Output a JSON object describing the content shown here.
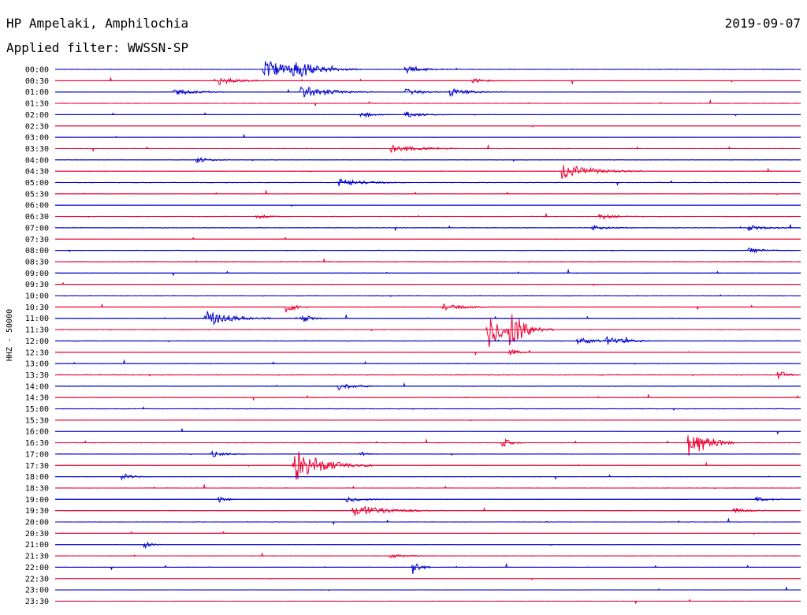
{
  "header": {
    "station": "HP Ampelaki, Amphilochia",
    "filter": "Applied filter: WWSSN-SP",
    "date": "2019-09-07"
  },
  "chart_data": {
    "type": "line",
    "title": "HP Ampelaki, Amphilochia",
    "subtitle": "Applied filter: WWSSN-SP",
    "date": "2019-09-07",
    "ylabel": "HHZ - 50000",
    "colors": [
      "#0000cc",
      "#ee0033"
    ],
    "row_labels": [
      "00:00",
      "00:30",
      "01:00",
      "01:30",
      "02:00",
      "02:30",
      "03:00",
      "03:30",
      "04:00",
      "04:30",
      "05:00",
      "05:30",
      "06:00",
      "06:30",
      "07:00",
      "07:30",
      "08:00",
      "08:30",
      "09:00",
      "09:30",
      "10:00",
      "10:30",
      "11:00",
      "11:30",
      "12:00",
      "12:30",
      "13:00",
      "13:30",
      "14:00",
      "14:30",
      "15:00",
      "15:30",
      "16:00",
      "16:30",
      "17:00",
      "17:30",
      "18:00",
      "18:30",
      "19:00",
      "19:30",
      "20:00",
      "20:30",
      "21:00",
      "21:30",
      "22:00",
      "22:30",
      "23:00",
      "23:30"
    ],
    "noise": [
      0.22,
      0.15,
      0.2,
      0.05,
      0.12,
      0.08,
      0.06,
      0.18,
      0.22,
      0.1,
      0.22,
      0.12,
      0.12,
      0.2,
      0.25,
      0.08,
      0.22,
      0.25,
      0.2,
      0.1,
      0.2,
      0.12,
      0.25,
      0.2,
      0.28,
      0.22,
      0.25,
      0.35,
      0.3,
      0.25,
      0.25,
      0.18,
      0.12,
      0.2,
      0.18,
      0.12,
      0.12,
      0.15,
      0.15,
      0.12,
      0.15,
      0.05,
      0.15,
      0.08,
      0.12,
      0.1,
      0.1,
      0.08
    ],
    "events": [
      {
        "row": 0,
        "t": 0.28,
        "amp": 14,
        "dur": 0.03
      },
      {
        "row": 0,
        "t": 0.32,
        "amp": 10,
        "dur": 0.03
      },
      {
        "row": 0,
        "t": 0.47,
        "amp": 5,
        "dur": 0.02
      },
      {
        "row": 1,
        "t": 0.22,
        "amp": 5,
        "dur": 0.025
      },
      {
        "row": 1,
        "t": 0.56,
        "amp": 3,
        "dur": 0.02
      },
      {
        "row": 2,
        "t": 0.16,
        "amp": 4,
        "dur": 0.025
      },
      {
        "row": 2,
        "t": 0.33,
        "amp": 8,
        "dur": 0.035
      },
      {
        "row": 2,
        "t": 0.47,
        "amp": 4,
        "dur": 0.02
      },
      {
        "row": 2,
        "t": 0.53,
        "amp": 5,
        "dur": 0.025
      },
      {
        "row": 4,
        "t": 0.41,
        "amp": 4,
        "dur": 0.015
      },
      {
        "row": 4,
        "t": 0.47,
        "amp": 4,
        "dur": 0.02
      },
      {
        "row": 7,
        "t": 0.45,
        "amp": 6,
        "dur": 0.03
      },
      {
        "row": 8,
        "t": 0.19,
        "amp": 4,
        "dur": 0.015
      },
      {
        "row": 9,
        "t": 0.68,
        "amp": 11,
        "dur": 0.035
      },
      {
        "row": 10,
        "t": 0.38,
        "amp": 5,
        "dur": 0.03
      },
      {
        "row": 13,
        "t": 0.27,
        "amp": 3,
        "dur": 0.015
      },
      {
        "row": 13,
        "t": 0.73,
        "amp": 4,
        "dur": 0.02
      },
      {
        "row": 14,
        "t": 0.72,
        "amp": 3,
        "dur": 0.02
      },
      {
        "row": 14,
        "t": 0.93,
        "amp": 3,
        "dur": 0.025
      },
      {
        "row": 16,
        "t": 0.93,
        "amp": 3,
        "dur": 0.02
      },
      {
        "row": 21,
        "t": 0.31,
        "amp": 9,
        "dur": 0.01
      },
      {
        "row": 21,
        "t": 0.52,
        "amp": 4,
        "dur": 0.03
      },
      {
        "row": 22,
        "t": 0.2,
        "amp": 11,
        "dur": 0.03
      },
      {
        "row": 22,
        "t": 0.33,
        "amp": 6,
        "dur": 0.012
      },
      {
        "row": 23,
        "t": 0.58,
        "amp": 26,
        "dur": 0.02
      },
      {
        "row": 23,
        "t": 0.61,
        "amp": 20,
        "dur": 0.02
      },
      {
        "row": 24,
        "t": 0.7,
        "amp": 4,
        "dur": 0.03
      },
      {
        "row": 24,
        "t": 0.74,
        "amp": 4,
        "dur": 0.025
      },
      {
        "row": 25,
        "t": 0.61,
        "amp": 4,
        "dur": 0.01
      },
      {
        "row": 27,
        "t": 0.97,
        "amp": 6,
        "dur": 0.01
      },
      {
        "row": 28,
        "t": 0.38,
        "amp": 5,
        "dur": 0.02
      },
      {
        "row": 33,
        "t": 0.6,
        "amp": 6,
        "dur": 0.01
      },
      {
        "row": 33,
        "t": 0.85,
        "amp": 26,
        "dur": 0.02
      },
      {
        "row": 34,
        "t": 0.21,
        "amp": 4,
        "dur": 0.015
      },
      {
        "row": 34,
        "t": 0.41,
        "amp": 3,
        "dur": 0.008
      },
      {
        "row": 35,
        "t": 0.32,
        "amp": 22,
        "dur": 0.035
      },
      {
        "row": 36,
        "t": 0.09,
        "amp": 5,
        "dur": 0.012
      },
      {
        "row": 38,
        "t": 0.22,
        "amp": 4,
        "dur": 0.008
      },
      {
        "row": 38,
        "t": 0.39,
        "amp": 4,
        "dur": 0.02
      },
      {
        "row": 38,
        "t": 0.94,
        "amp": 3,
        "dur": 0.015
      },
      {
        "row": 39,
        "t": 0.4,
        "amp": 8,
        "dur": 0.04
      },
      {
        "row": 39,
        "t": 0.91,
        "amp": 3,
        "dur": 0.02
      },
      {
        "row": 42,
        "t": 0.12,
        "amp": 5,
        "dur": 0.008
      },
      {
        "row": 43,
        "t": 0.45,
        "amp": 3,
        "dur": 0.02
      },
      {
        "row": 44,
        "t": 0.48,
        "amp": 13,
        "dur": 0.008
      }
    ]
  }
}
